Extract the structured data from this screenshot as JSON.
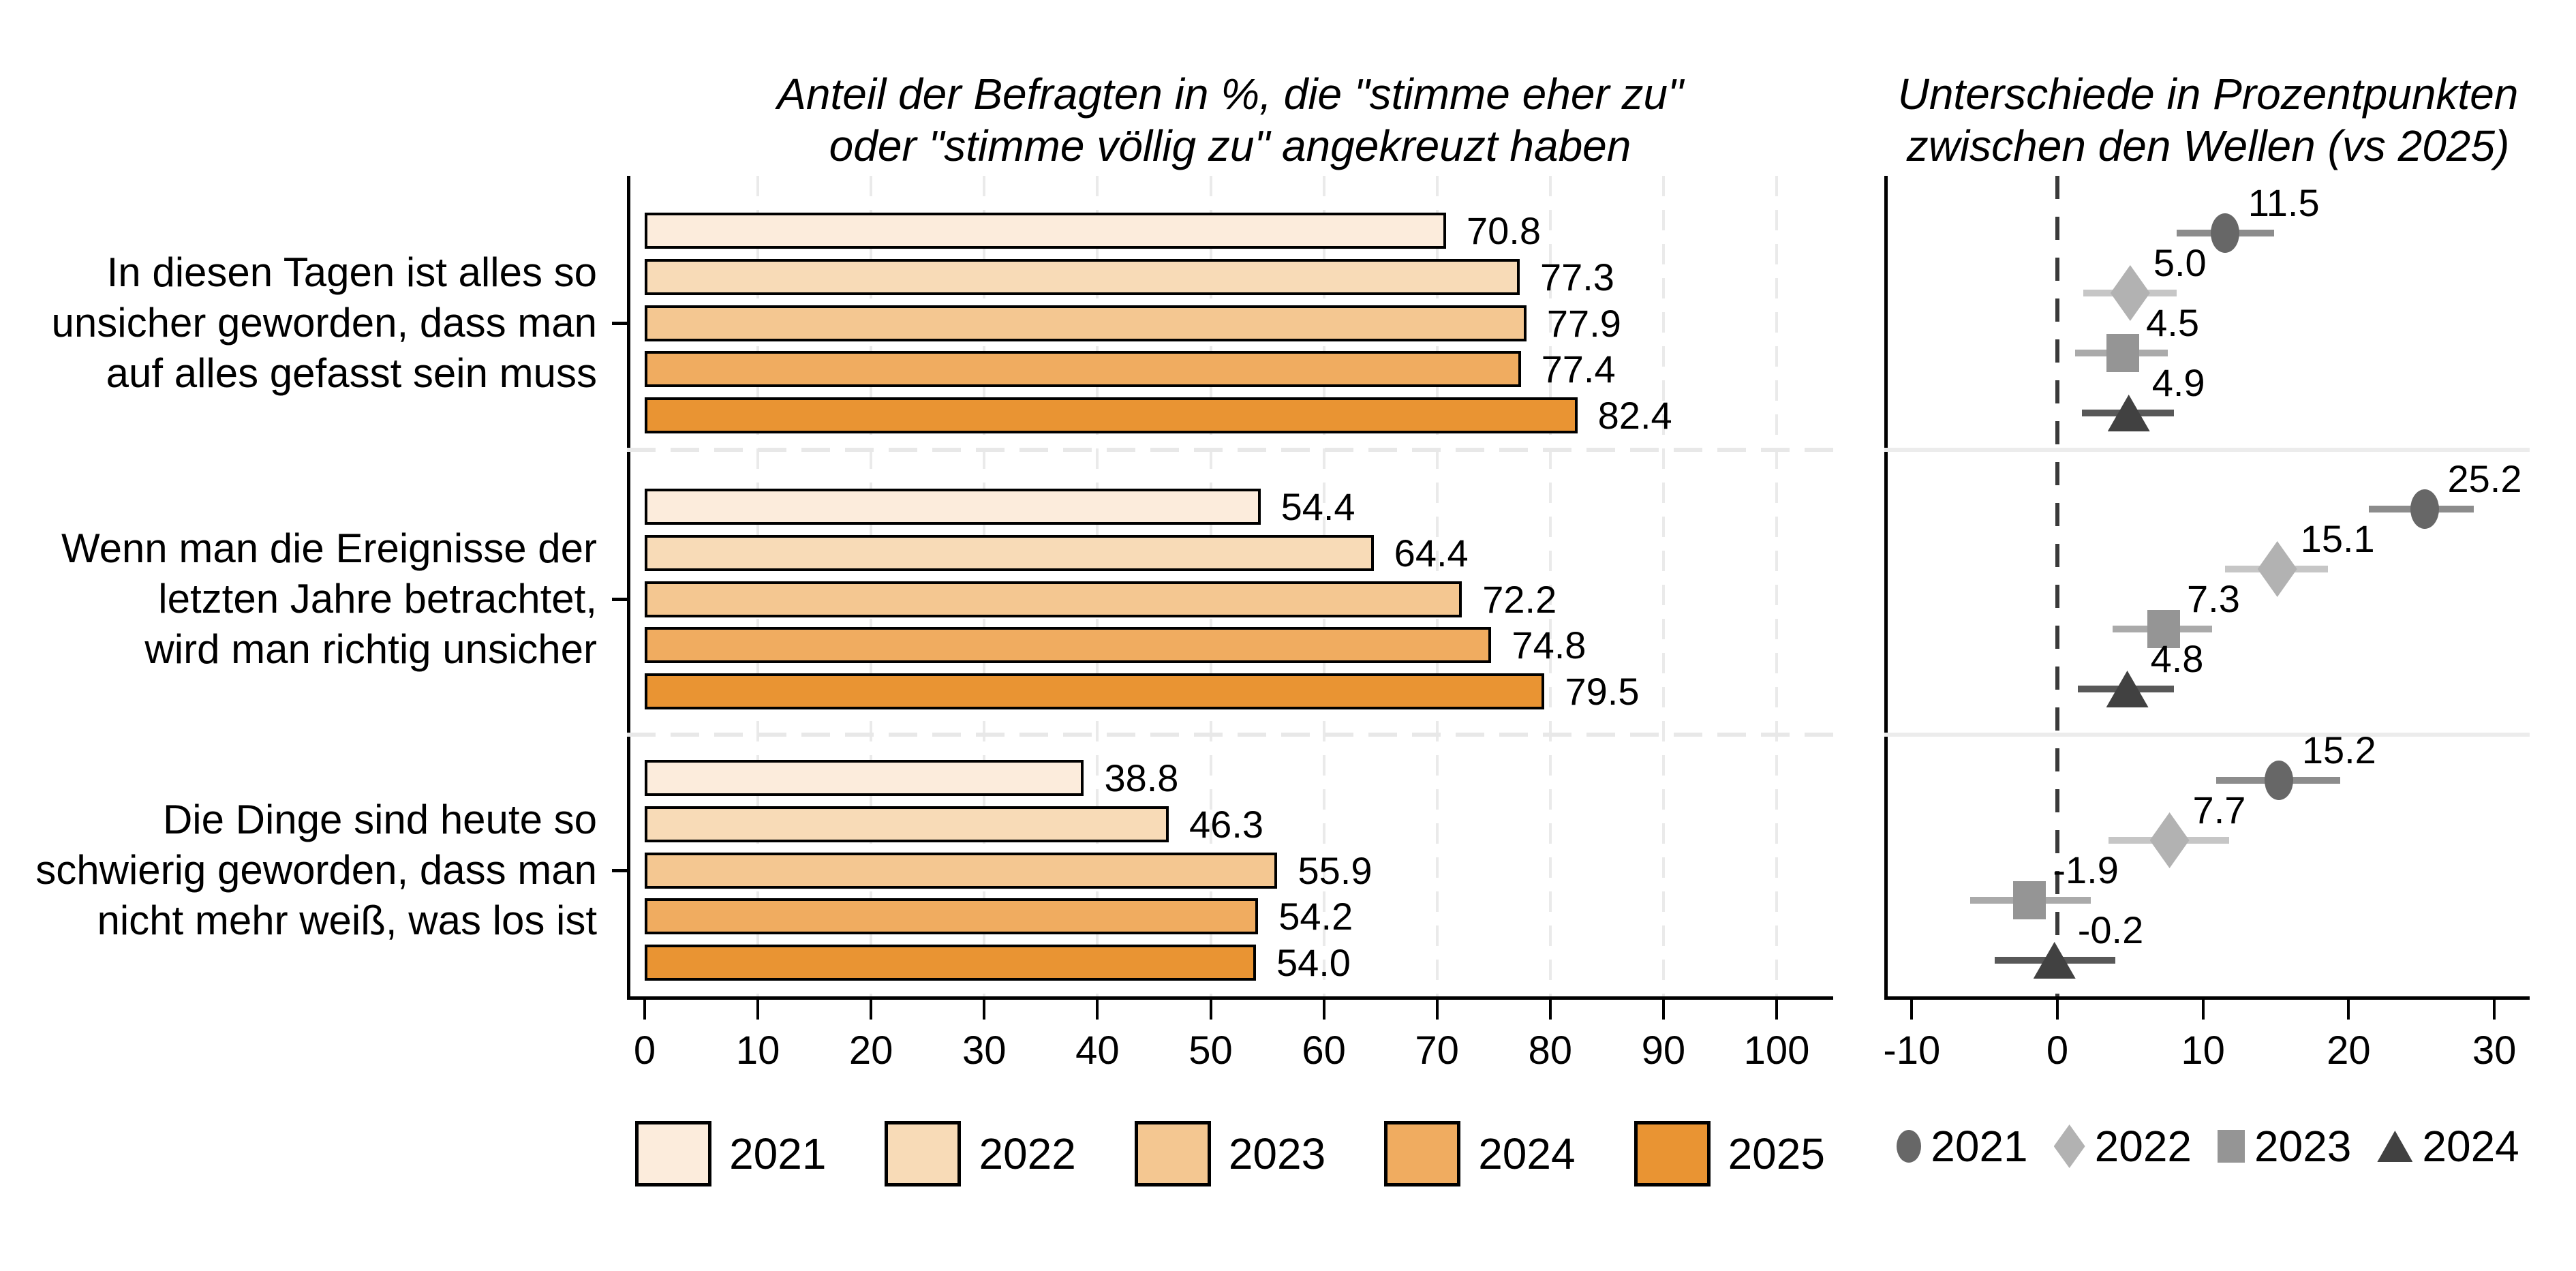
{
  "chart_data": [
    {
      "id": "agreement_share_bars",
      "type": "bar",
      "orientation": "horizontal",
      "title": "Anteil der Befragten in %, die \"stimme eher zu\" oder \"stimme völlig zu\" angekreuzt haben",
      "title_lines": [
        "Anteil der Befragten in %, die \"stimme eher zu\"",
        "oder \"stimme völlig zu\" angekreuzt haben"
      ],
      "xlim": [
        0,
        100
      ],
      "x_ticks": [
        0,
        10,
        20,
        30,
        40,
        50,
        60,
        70,
        80,
        90,
        100
      ],
      "grid": "vertical dashed light-gray gridlines at every 10; dashed light-gray horizontal separators between question groups",
      "legend_position": "bottom",
      "series": [
        {
          "name": "2021",
          "fill": "#fcecdc"
        },
        {
          "name": "2022",
          "fill": "#f8dbb7"
        },
        {
          "name": "2023",
          "fill": "#f4c791"
        },
        {
          "name": "2024",
          "fill": "#f0ac60"
        },
        {
          "name": "2025",
          "fill": "#e99433"
        }
      ],
      "bar_border_color": "#000000",
      "categories": [
        {
          "label": "In diesen Tagen ist alles so unsicher geworden, dass man auf alles gefasst sein muss",
          "label_lines": [
            "In diesen Tagen ist alles so",
            "unsicher geworden, dass man",
            "auf alles gefasst sein muss"
          ],
          "values": [
            70.8,
            77.3,
            77.9,
            77.4,
            82.4
          ]
        },
        {
          "label": "Wenn man die Ereignisse der letzten Jahre betrachtet, wird man richtig unsicher",
          "label_lines": [
            "Wenn man die Ereignisse der",
            "letzten Jahre betrachtet,",
            "wird man richtig unsicher"
          ],
          "values": [
            54.4,
            64.4,
            72.2,
            74.8,
            79.5
          ]
        },
        {
          "label": "Die Dinge sind heute so schwierig geworden, dass man nicht mehr weiß, was los ist",
          "label_lines": [
            "Die Dinge sind heute so",
            "schwierig geworden, dass man",
            "nicht mehr weiß, was los ist"
          ],
          "values": [
            38.8,
            46.3,
            55.9,
            54.2,
            54.0
          ]
        }
      ]
    },
    {
      "id": "differences_vs_2025_dotplot",
      "type": "scatter",
      "subtype": "dot-plot with confidence intervals",
      "title": "Unterschiede in Prozentpunkten zwischen den Wellen (vs 2025)",
      "title_lines": [
        "Unterschiede in Prozentpunkten",
        "zwischen den Wellen (vs 2025)"
      ],
      "xlim": [
        -11.9,
        32.4
      ],
      "x_ticks": [
        -10,
        0,
        10,
        20,
        30
      ],
      "zero_reference_line": 0,
      "grid": "dashed black vertical reference line at 0; solid light-gray horizontal separators between question groups",
      "legend_position": "bottom",
      "series": [
        {
          "name": "2021",
          "marker": "circle",
          "color": "#676767",
          "ci_color": "#8c8c8c"
        },
        {
          "name": "2022",
          "marker": "diamond",
          "color": "#b2b2b2",
          "ci_color": "#c6c6c6"
        },
        {
          "name": "2023",
          "marker": "square",
          "color": "#959595",
          "ci_color": "#aaaaaa"
        },
        {
          "name": "2024",
          "marker": "triangle",
          "color": "#414141",
          "ci_color": "#585858"
        }
      ],
      "groups": [
        {
          "points": [
            {
              "year": "2021",
              "value": 11.5,
              "ci": [
                8.2,
                14.9
              ]
            },
            {
              "year": "2022",
              "value": 5.0,
              "ci": [
                1.8,
                8.2
              ]
            },
            {
              "year": "2023",
              "value": 4.5,
              "ci": [
                1.2,
                7.6
              ]
            },
            {
              "year": "2024",
              "value": 4.9,
              "ci": [
                1.7,
                8.0
              ]
            }
          ]
        },
        {
          "points": [
            {
              "year": "2021",
              "value": 25.2,
              "ci": [
                21.4,
                28.6
              ]
            },
            {
              "year": "2022",
              "value": 15.1,
              "ci": [
                11.5,
                18.6
              ]
            },
            {
              "year": "2023",
              "value": 7.3,
              "ci": [
                3.8,
                10.6
              ]
            },
            {
              "year": "2024",
              "value": 4.8,
              "ci": [
                1.4,
                8.0
              ]
            }
          ]
        },
        {
          "points": [
            {
              "year": "2021",
              "value": 15.2,
              "ci": [
                10.9,
                19.4
              ]
            },
            {
              "year": "2022",
              "value": 7.7,
              "ci": [
                3.5,
                11.8
              ]
            },
            {
              "year": "2023",
              "value": -1.9,
              "ci": [
                -6.0,
                2.3
              ]
            },
            {
              "year": "2024",
              "value": -0.2,
              "ci": [
                -4.3,
                4.0
              ]
            }
          ]
        }
      ]
    }
  ]
}
